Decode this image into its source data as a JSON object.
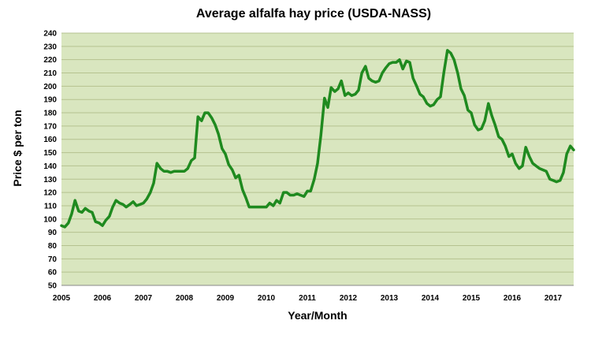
{
  "chart_data": {
    "type": "line",
    "title": "Average alfalfa hay price (USDA-NASS)",
    "xlabel": "Year/Month",
    "ylabel": "Price $ per ton",
    "ylim": [
      50,
      240
    ],
    "y_ticks": [
      50,
      60,
      70,
      80,
      90,
      100,
      110,
      120,
      130,
      140,
      150,
      160,
      170,
      180,
      190,
      200,
      210,
      220,
      230,
      240
    ],
    "x_ticks": [
      "2005",
      "2006",
      "2007",
      "2008",
      "2009",
      "2010",
      "2011",
      "2012",
      "2013",
      "2014",
      "2015",
      "2016",
      "2017"
    ],
    "xlim": [
      2005.0,
      2017.5
    ],
    "grid": true,
    "colors": {
      "line": "#1f8a1f",
      "plot_bg": "#d9e6bf",
      "grid": "#b5c28f"
    },
    "series": [
      {
        "x": [
          2005.0,
          2005.08,
          2005.17,
          2005.25,
          2005.33,
          2005.42,
          2005.5,
          2005.58,
          2005.67,
          2005.75,
          2005.83,
          2005.92,
          2006.0,
          2006.08,
          2006.17,
          2006.25,
          2006.33,
          2006.42,
          2006.5,
          2006.58,
          2006.67,
          2006.75,
          2006.83,
          2006.92,
          2007.0,
          2007.08,
          2007.17,
          2007.25,
          2007.33,
          2007.42,
          2007.5,
          2007.58,
          2007.67,
          2007.75,
          2007.83,
          2007.92,
          2008.0,
          2008.08,
          2008.17,
          2008.25,
          2008.33,
          2008.42,
          2008.5,
          2008.58,
          2008.67,
          2008.75,
          2008.83,
          2008.92,
          2009.0,
          2009.08,
          2009.17,
          2009.25,
          2009.33,
          2009.42,
          2009.5,
          2009.58,
          2009.67,
          2009.75,
          2009.83,
          2009.92,
          2010.0,
          2010.08,
          2010.17,
          2010.25,
          2010.33,
          2010.42,
          2010.5,
          2010.58,
          2010.67,
          2010.75,
          2010.83,
          2010.92,
          2011.0,
          2011.08,
          2011.17,
          2011.25,
          2011.33,
          2011.42,
          2011.5,
          2011.58,
          2011.67,
          2011.75,
          2011.83,
          2011.92,
          2012.0,
          2012.08,
          2012.17,
          2012.25,
          2012.33,
          2012.42,
          2012.5,
          2012.58,
          2012.67,
          2012.75,
          2012.83,
          2012.92,
          2013.0,
          2013.08,
          2013.17,
          2013.25,
          2013.33,
          2013.42,
          2013.5,
          2013.58,
          2013.67,
          2013.75,
          2013.83,
          2013.92,
          2014.0,
          2014.08,
          2014.17,
          2014.25,
          2014.33,
          2014.42,
          2014.5,
          2014.58,
          2014.67,
          2014.75,
          2014.83,
          2014.92,
          2015.0,
          2015.08,
          2015.17,
          2015.25,
          2015.33,
          2015.42,
          2015.5,
          2015.58,
          2015.67,
          2015.75,
          2015.83,
          2015.92,
          2016.0,
          2016.08,
          2016.17,
          2016.25,
          2016.33,
          2016.42,
          2016.5,
          2016.58,
          2016.67,
          2016.75,
          2016.83,
          2016.92,
          2017.0,
          2017.08,
          2017.17,
          2017.25,
          2017.33,
          2017.42,
          2017.5
        ],
        "values": [
          95,
          94,
          97,
          104,
          114,
          106,
          105,
          108,
          106,
          105,
          98,
          97,
          95,
          99,
          102,
          109,
          114,
          112,
          111,
          109,
          111,
          113,
          110,
          111,
          112,
          115,
          120,
          127,
          142,
          138,
          136,
          136,
          135,
          136,
          136,
          136,
          136,
          138,
          144,
          146,
          177,
          174,
          180,
          180,
          176,
          171,
          164,
          153,
          149,
          141,
          137,
          131,
          133,
          122,
          116,
          109,
          109,
          109,
          109,
          109,
          109,
          112,
          110,
          114,
          112,
          120,
          120,
          118,
          118,
          119,
          118,
          117,
          121,
          121,
          130,
          142,
          163,
          191,
          184,
          199,
          196,
          198,
          204,
          193,
          195,
          193,
          194,
          197,
          210,
          215,
          206,
          204,
          203,
          204,
          210,
          214,
          217,
          218,
          218,
          220,
          213,
          219,
          218,
          206,
          200,
          194,
          192,
          187,
          185,
          186,
          190,
          192,
          210,
          227,
          225,
          220,
          210,
          198,
          193,
          182,
          180,
          171,
          167,
          168,
          174,
          187,
          178,
          171,
          162,
          160,
          155,
          147,
          149,
          142,
          138,
          140,
          154,
          147,
          142,
          140,
          138,
          137,
          136,
          130,
          129,
          128,
          129,
          135,
          149,
          155,
          152
        ]
      }
    ]
  }
}
